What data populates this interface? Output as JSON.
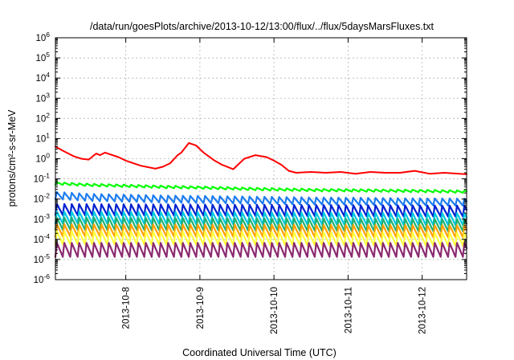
{
  "chart_data": {
    "type": "line",
    "title": "/data/run/goesPlots/archive/2013-10-12/13:00/flux/../flux/5daysMarsFluxes.txt",
    "xlabel": "Coordinated Universal Time (UTC)",
    "ylabel": "protons/cm²-s-sr-MeV",
    "yscale": "log",
    "ylim_exponents": [
      -6,
      6
    ],
    "y_tick_labels": [
      {
        "base": "10",
        "exp": "-6"
      },
      {
        "base": "10",
        "exp": "-5"
      },
      {
        "base": "10",
        "exp": "-4"
      },
      {
        "base": "10",
        "exp": "-3"
      },
      {
        "base": "10",
        "exp": "-2"
      },
      {
        "base": "10",
        "exp": "-1"
      },
      {
        "base": "10",
        "exp": "0"
      },
      {
        "base": "10",
        "exp": "1"
      },
      {
        "base": "10",
        "exp": "2"
      },
      {
        "base": "10",
        "exp": "3"
      },
      {
        "base": "10",
        "exp": "4"
      },
      {
        "base": "10",
        "exp": "5"
      },
      {
        "base": "10",
        "exp": "6"
      }
    ],
    "xlim": [
      7.05,
      12.6
    ],
    "x_ticks": [
      {
        "label": "2013-10-8",
        "day": 8
      },
      {
        "label": "2013-10-9",
        "day": 9
      },
      {
        "label": "2013-10-10",
        "day": 10
      },
      {
        "label": "2013-10-11",
        "day": 11
      },
      {
        "label": "2013-10-12",
        "day": 12
      }
    ],
    "grid": true,
    "legend": "none",
    "series": [
      {
        "color": "#ff0000",
        "x": [
          7.05,
          7.15,
          7.3,
          7.4,
          7.5,
          7.6,
          7.65,
          7.72,
          7.8,
          7.9,
          8.0,
          8.2,
          8.4,
          8.5,
          8.6,
          8.7,
          8.75,
          8.85,
          8.95,
          9.05,
          9.2,
          9.3,
          9.45,
          9.6,
          9.75,
          9.9,
          10.0,
          10.1,
          10.2,
          10.3,
          10.5,
          10.7,
          10.9,
          11.1,
          11.3,
          11.5,
          11.7,
          11.9,
          12.1,
          12.3,
          12.5,
          12.6
        ],
        "y": [
          4.0,
          2.5,
          1.3,
          1.0,
          0.9,
          1.8,
          1.5,
          2.0,
          1.6,
          1.2,
          0.8,
          0.45,
          0.32,
          0.4,
          0.6,
          1.5,
          2.0,
          6.0,
          4.5,
          2.0,
          0.8,
          0.5,
          0.3,
          1.0,
          1.5,
          1.2,
          0.8,
          0.5,
          0.25,
          0.2,
          0.22,
          0.2,
          0.22,
          0.18,
          0.22,
          0.2,
          0.2,
          0.25,
          0.18,
          0.2,
          0.18,
          0.17
        ]
      },
      {
        "color": "#00ff00",
        "x": [
          7.05,
          7.5,
          8.0,
          8.5,
          9.0,
          9.5,
          10.0,
          10.5,
          11.0,
          11.5,
          12.0,
          12.6
        ],
        "y": [
          0.06,
          0.05,
          0.045,
          0.04,
          0.037,
          0.033,
          0.03,
          0.028,
          0.027,
          0.026,
          0.025,
          0.023
        ]
      },
      {
        "color": "#1c7cf0",
        "x": [
          7.05,
          7.5,
          8.0,
          8.5,
          9.0,
          9.5,
          10.0,
          10.5,
          11.0,
          11.5,
          12.0,
          12.6
        ],
        "y": [
          0.015,
          0.012,
          0.011,
          0.01,
          0.0095,
          0.009,
          0.0085,
          0.008,
          0.0078,
          0.0075,
          0.0072,
          0.007
        ]
      },
      {
        "color": "#0020d0",
        "x": [
          7.05,
          12.6
        ],
        "y": [
          0.003,
          0.0025
        ]
      },
      {
        "color": "#00c8e0",
        "x": [
          7.05,
          12.6
        ],
        "y": [
          0.0012,
          0.001
        ]
      },
      {
        "color": "#20b070",
        "x": [
          7.05,
          12.6
        ],
        "y": [
          0.0006,
          0.0005
        ]
      },
      {
        "color": "#ffa000",
        "x": [
          7.05,
          12.6
        ],
        "y": [
          0.00028,
          0.00025
        ]
      },
      {
        "color": "#ffff40",
        "x": [
          7.05,
          12.6
        ],
        "y": [
          0.00012,
          0.0001
        ]
      },
      {
        "color": "#8b2a70",
        "x": [
          7.05,
          12.6
        ],
        "y": [
          3e-05,
          3e-05
        ]
      }
    ]
  }
}
